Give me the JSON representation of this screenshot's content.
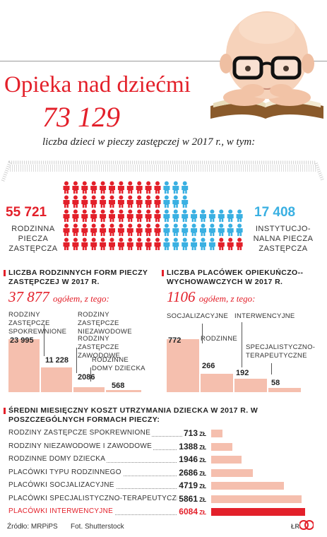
{
  "header": {
    "title": "Opieka nad dziećmi",
    "total": "73 129",
    "total_caption": "liczba dzieci w pieczy zastępczej w 2017 r., w tym:"
  },
  "split": {
    "left_value": "55 721",
    "left_label": "RODZINNA PIECZA ZASTĘPCZA",
    "right_value": "17 408",
    "right_label": "INSTYTUCJO-NALNA PIECZA ZASTĘPCZA",
    "family_share": 0.762,
    "red_color": "#e3202a",
    "blue_color": "#3ab0e2"
  },
  "section_family": {
    "title": "LICZBA RODZINNYCH FORM PIECZY ZASTĘPCZEJ W 2017 R.",
    "total_number": "37 877",
    "total_suffix": "ogółem, z tego:",
    "items": [
      {
        "label": "RODZINY ZASTĘPCZE SPOKREWNIONE",
        "value": "23 995",
        "num": 23995
      },
      {
        "label": "RODZINY ZASTĘPCZE NIEZAWODOWE",
        "value": "11 228",
        "num": 11228
      },
      {
        "label": "RODZINY ZASTĘPCZE ZAWODOWE",
        "value": "2086",
        "num": 2086
      },
      {
        "label": "RODZINNE DOMY DZIECKA",
        "value": "568",
        "num": 568
      }
    ]
  },
  "section_institutions": {
    "title": "LICZBA PLACÓWEK OPIEKUŃCZO--WYCHOWAWCZYCH W 2017 R.",
    "total_number": "1106",
    "total_suffix": "ogółem, z tego:",
    "items": [
      {
        "label": "SOCJALIZACYJNE",
        "value": "772",
        "num": 772
      },
      {
        "label": "RODZINNE",
        "value": "266",
        "num": 266
      },
      {
        "label": "INTERWENCYJNE",
        "value": "192",
        "num": 192
      },
      {
        "label": "SPECJALISTYCZNO-TERAPEUTYCZNE",
        "value": "58",
        "num": 58
      }
    ]
  },
  "section_costs": {
    "title": "ŚREDNI MIESIĘCZNY KOSZT UTRZYMANIA DZIECKA W 2017 R. W POSZCZEGÓLNYCH FORMACH PIECZY:",
    "unit": "ZŁ",
    "max": 6084,
    "rows": [
      {
        "label": "RODZINY ZASTĘPCZE SPOKREWNIONE",
        "value": "713",
        "num": 713
      },
      {
        "label": "RODZINY NIEZAWODOWE I ZAWODOWE",
        "value": "1388",
        "num": 1388
      },
      {
        "label": "RODZINNE DOMY DZIECKA",
        "value": "1946",
        "num": 1946
      },
      {
        "label": "PLACÓWKI TYPU RODZINNEGO",
        "value": "2686",
        "num": 2686
      },
      {
        "label": "PLACÓWKI SOCJALIZACYJNE",
        "value": "4719",
        "num": 4719
      },
      {
        "label": "PLACÓWKI SPECJALISTYCZNO-TERAPEUTYCZNE",
        "value": "5861",
        "num": 5861
      },
      {
        "label": "PLACÓWKI INTERWENCYJNE",
        "value": "6084",
        "num": 6084,
        "highlight": true
      }
    ]
  },
  "footer": {
    "source": "Źródło: MRPiPS",
    "photo": "Fot. Shutterstock",
    "initials": "ŁR"
  }
}
